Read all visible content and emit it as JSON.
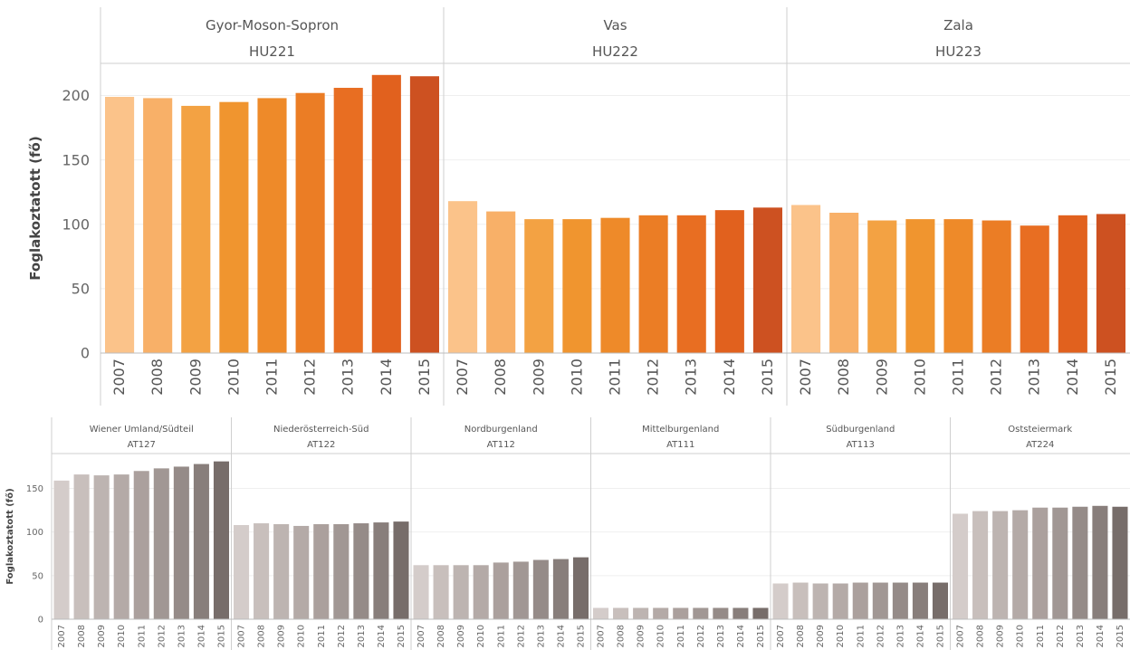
{
  "chart_data": [
    {
      "type": "bar",
      "ylabel": "Foglakoztatott (fő)",
      "ylim": [
        0,
        225
      ],
      "yticks": [
        0,
        50,
        100,
        150,
        200
      ],
      "grid": true,
      "categories": [
        "2007",
        "2008",
        "2009",
        "2010",
        "2011",
        "2012",
        "2013",
        "2014",
        "2015"
      ],
      "panels": [
        {
          "name": "Gyor-Moson-Sopron",
          "code": "HU221",
          "values": [
            199,
            198,
            192,
            195,
            198,
            202,
            206,
            216,
            215
          ]
        },
        {
          "name": "Vas",
          "code": "HU222",
          "values": [
            118,
            110,
            104,
            104,
            105,
            107,
            107,
            111,
            113
          ]
        },
        {
          "name": "Zala",
          "code": "HU223",
          "values": [
            115,
            109,
            103,
            104,
            104,
            103,
            99,
            107,
            108
          ]
        }
      ],
      "colors": [
        "#fbc38a",
        "#f8b068",
        "#f3a243",
        "#f0952f",
        "#ee8a29",
        "#eb7d25",
        "#e86e22",
        "#e1611e",
        "#cd5121"
      ]
    },
    {
      "type": "bar",
      "ylabel": "Foglakoztatott (fő)",
      "ylim": [
        0,
        190
      ],
      "yticks": [
        0,
        50,
        100,
        150
      ],
      "grid": true,
      "categories": [
        "2007",
        "2008",
        "2009",
        "2010",
        "2011",
        "2012",
        "2013",
        "2014",
        "2015"
      ],
      "panels": [
        {
          "name": "Wiener Umland/Südteil",
          "code": "AT127",
          "values": [
            159,
            166,
            165,
            166,
            170,
            173,
            175,
            178,
            181
          ]
        },
        {
          "name": "Niederösterreich-Süd",
          "code": "AT122",
          "values": [
            108,
            110,
            109,
            107,
            109,
            109,
            110,
            111,
            112
          ]
        },
        {
          "name": "Nordburgenland",
          "code": "AT112",
          "values": [
            62,
            62,
            62,
            62,
            65,
            66,
            68,
            69,
            71
          ]
        },
        {
          "name": "Mittelburgenland",
          "code": "AT111",
          "values": [
            13,
            13,
            13,
            13,
            13,
            13,
            13,
            13,
            13
          ]
        },
        {
          "name": "Südburgenland",
          "code": "AT113",
          "values": [
            41,
            42,
            41,
            41,
            42,
            42,
            42,
            42,
            42
          ]
        },
        {
          "name": "Oststeiermark",
          "code": "AT224",
          "values": [
            121,
            124,
            124,
            125,
            128,
            128,
            129,
            130,
            129
          ]
        }
      ],
      "colors": [
        "#d4ccca",
        "#c8bfbc",
        "#bdb4b1",
        "#b4aaa7",
        "#aba09d",
        "#a19794",
        "#958b88",
        "#887e7b",
        "#776d6a"
      ]
    }
  ]
}
